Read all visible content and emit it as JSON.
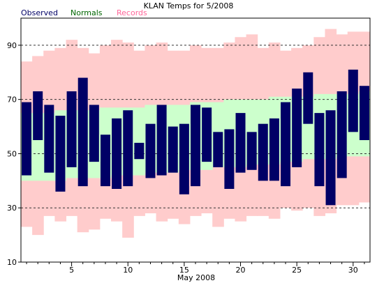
{
  "chart_data": {
    "type": "bar",
    "title": "KLAN Temps for 5/2008",
    "xlabel": "May 2008",
    "ylabel": "",
    "ylim": [
      10,
      100
    ],
    "xlim": [
      0.5,
      31.5
    ],
    "x_ticks": [
      5,
      10,
      15,
      20,
      25,
      30
    ],
    "y_ticks": [
      10,
      30,
      50,
      70,
      90
    ],
    "grid_lines_y": [
      30,
      50,
      70,
      90
    ],
    "legend_placement": "top-left",
    "days": [
      1,
      2,
      3,
      4,
      5,
      6,
      7,
      8,
      9,
      10,
      11,
      12,
      13,
      14,
      15,
      16,
      17,
      18,
      19,
      20,
      21,
      22,
      23,
      24,
      25,
      26,
      27,
      28,
      29,
      30,
      31
    ],
    "series": [
      {
        "name": "Records",
        "color": "#ffcccc",
        "low": [
          23,
          20,
          27,
          25,
          27,
          21,
          22,
          26,
          25,
          19,
          27,
          28,
          25,
          26,
          24,
          27,
          28,
          23,
          26,
          25,
          27,
          27,
          26,
          30,
          29,
          30,
          27,
          28,
          31,
          31,
          32
        ],
        "high": [
          84,
          86,
          88,
          89,
          92,
          89,
          87,
          90,
          92,
          91,
          88,
          90,
          91,
          88,
          88,
          90,
          89,
          89,
          91,
          93,
          94,
          89,
          91,
          88,
          89,
          90,
          93,
          96,
          94,
          95,
          95
        ]
      },
      {
        "name": "Normals",
        "color": "#ccffcc",
        "low": [
          40,
          40,
          40,
          40,
          41,
          41,
          41,
          41,
          42,
          42,
          42,
          43,
          43,
          43,
          44,
          44,
          44,
          45,
          45,
          45,
          46,
          46,
          46,
          47,
          47,
          48,
          48,
          48,
          49,
          49,
          49
        ],
        "high": [
          65,
          65,
          65,
          66,
          66,
          66,
          66,
          67,
          67,
          67,
          67,
          68,
          68,
          68,
          68,
          69,
          69,
          69,
          70,
          70,
          70,
          70,
          71,
          71,
          71,
          71,
          72,
          72,
          72,
          72,
          73
        ]
      },
      {
        "name": "Observed",
        "color": "#000066",
        "low": [
          42,
          55,
          43,
          36,
          45,
          38,
          47,
          38,
          37,
          38,
          48,
          41,
          42,
          43,
          35,
          38,
          47,
          45,
          37,
          43,
          44,
          40,
          40,
          38,
          45,
          61,
          38,
          31,
          41,
          58,
          55
        ],
        "high": [
          69,
          73,
          68,
          64,
          73,
          78,
          68,
          57,
          63,
          66,
          54,
          61,
          68,
          60,
          61,
          68,
          67,
          58,
          59,
          65,
          58,
          61,
          63,
          69,
          74,
          80,
          65,
          66,
          73,
          81,
          75
        ]
      }
    ],
    "display_series": [
      {
        "name": "Records",
        "low": [
          23,
          20,
          27,
          25,
          27,
          21,
          22,
          26,
          25,
          19,
          27,
          28,
          25,
          26,
          24,
          27,
          28,
          23,
          26,
          25,
          27,
          27,
          26,
          30,
          29,
          30,
          27,
          28,
          31,
          31,
          32
        ],
        "high": [
          84,
          86,
          88,
          89,
          92,
          89,
          87,
          90,
          92,
          91,
          88,
          90,
          91,
          88,
          88,
          90,
          89,
          89,
          91,
          93,
          94,
          89,
          91,
          88,
          89,
          90,
          93,
          96,
          94,
          95,
          95
        ]
      }
    ]
  },
  "legend": {
    "observed": "Observed",
    "normals": "Normals",
    "records": "Records"
  },
  "colors": {
    "observed": "#000066",
    "normals_band": "#ccffcc",
    "records_band": "#ffcccc",
    "normals_text": "#006600",
    "records_text": "#ff6699",
    "grid": "#333333"
  }
}
